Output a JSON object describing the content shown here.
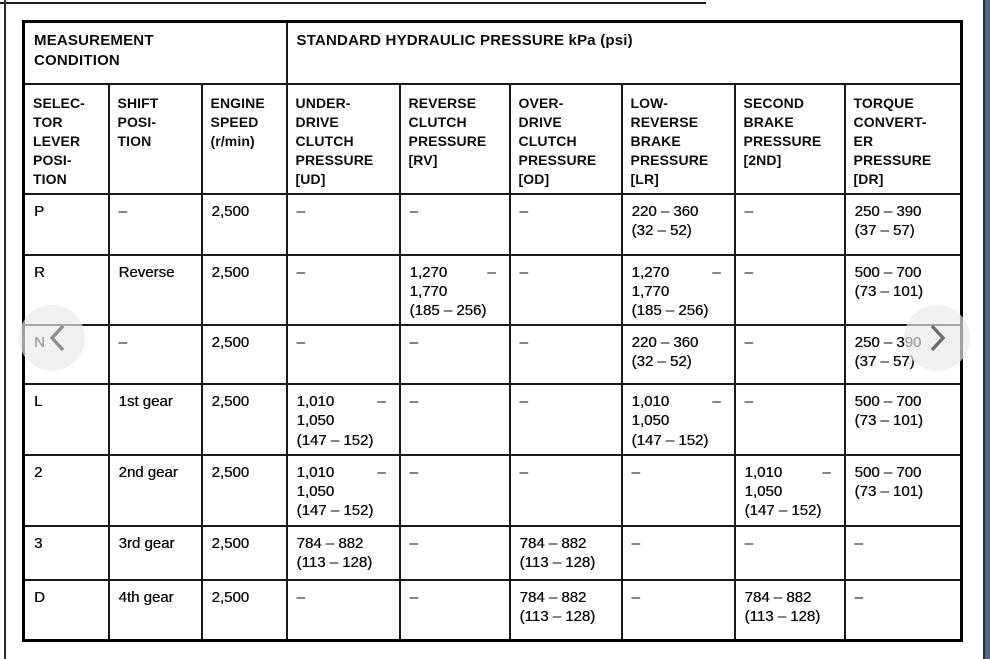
{
  "viewer": {
    "accent_strip_color": "#51688a",
    "background_color": "#ffffff",
    "nav": {
      "prev_icon": "chevron-left",
      "next_icon": "chevron-right"
    }
  },
  "table": {
    "group_headers": [
      {
        "label": "MEASUREMENT\nCONDITION"
      },
      {
        "label": "STANDARD HYDRAULIC PRESSURE kPa (psi)"
      }
    ],
    "columns": [
      {
        "key": "selector-lever-position",
        "label": "SELEC-\nTOR\nLEVER\nPOSI-\nTION"
      },
      {
        "key": "shift-position",
        "label": "SHIFT\nPOSI-\nTION"
      },
      {
        "key": "engine-speed",
        "label": "ENGINE\nSPEED\n(r/min)"
      },
      {
        "key": "underdrive-clutch-pressure",
        "label": "UNDER-\nDRIVE\nCLUTCH\nPRESSURE\n[UD]"
      },
      {
        "key": "reverse-clutch-pressure",
        "label": "REVERSE\nCLUTCH\nPRESSURE\n[RV]"
      },
      {
        "key": "overdrive-clutch-pressure",
        "label": "OVER-\nDRIVE\nCLUTCH\nPRESSURE\n[OD]"
      },
      {
        "key": "low-reverse-brake-pressure",
        "label": "LOW-\nREVERSE\nBRAKE\nPRESSURE\n[LR]"
      },
      {
        "key": "second-brake-pressure",
        "label": "SECOND\nBRAKE\nPRESSURE\n[2ND]"
      },
      {
        "key": "torque-converter-pressure",
        "label": "TORQUE\nCONVERT-\nER\nPRESSURE\n[DR]"
      }
    ],
    "rows": [
      {
        "cells": [
          "P",
          "–",
          "2,500",
          "–",
          "–",
          "–",
          "220 – 360\n(32 – 52)",
          "–",
          "250 – 390\n(37 – 57)"
        ]
      },
      {
        "cells": [
          "R",
          "Reverse",
          "2,500",
          "–",
          "1,270\t–\n1,770\n(185 – 256)",
          "–",
          "1,270\t–\n1,770\n(185 – 256)",
          "–",
          "500 – 700\n(73 – 101)"
        ]
      },
      {
        "cells": [
          "N",
          "–",
          "2,500",
          "–",
          "–",
          "–",
          "220 – 360\n(32 – 52)",
          "–",
          "250 – 390\n(37 – 57)"
        ]
      },
      {
        "cells": [
          "L",
          "1st gear",
          "2,500",
          "1,010\t–\n1,050\n(147 – 152)",
          "–",
          "–",
          "1,010\t–\n1,050\n(147 – 152)",
          "–",
          "500 – 700\n(73 – 101)"
        ]
      },
      {
        "cells": [
          "2",
          "2nd gear",
          "2,500",
          "1,010\t–\n1,050\n(147 – 152)",
          "–",
          "–",
          "–",
          "1,010\t–\n1,050\n(147 – 152)",
          "500 – 700\n(73 – 101)"
        ]
      },
      {
        "cells": [
          "3",
          "3rd gear",
          "2,500",
          "784 – 882\n(113 – 128)",
          "–",
          "784 – 882\n(113 – 128)",
          "–",
          "–",
          "–"
        ]
      },
      {
        "cells": [
          "D",
          "4th gear",
          "2,500",
          "–",
          "–",
          "784 – 882\n(113 – 128)",
          "–",
          "784 – 882\n(113 – 128)",
          "–"
        ]
      }
    ]
  }
}
